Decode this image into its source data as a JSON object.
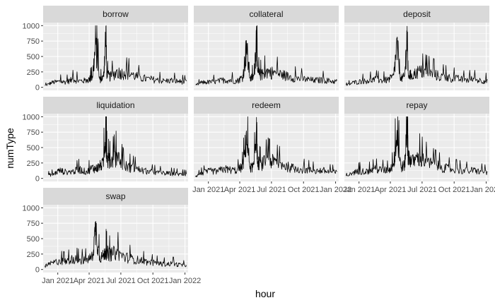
{
  "colors": {
    "panel_bg": "#EBEBEB",
    "strip_bg": "#D9D9D9",
    "grid_major": "#FFFFFF",
    "line": "#000000"
  },
  "chart_data": {
    "type": "line",
    "facet_layout": "3 columns, 3 rows (7 panels)",
    "xlabel": "hour",
    "ylabel": "numType",
    "ylim": [
      0,
      1000
    ],
    "yticks": [
      0,
      250,
      500,
      750,
      1000
    ],
    "xlim": [
      "2020-11-20",
      "2022-01-10"
    ],
    "xticks": [
      {
        "date": "2021-01-01",
        "label": "Jan 2021"
      },
      {
        "date": "2021-04-01",
        "label": "Apr 2021"
      },
      {
        "date": "2021-07-01",
        "label": "Jul 2021"
      },
      {
        "date": "2021-10-01",
        "label": "Oct 2021"
      },
      {
        "date": "2022-01-01",
        "label": "Jan 2022"
      }
    ],
    "grid": true,
    "panels": [
      {
        "name": "borrow",
        "series": {
          "x": [
            "2020-11-25",
            "2020-12-15",
            "2021-01-05",
            "2021-01-25",
            "2021-02-15",
            "2021-03-05",
            "2021-03-25",
            "2021-04-10",
            "2021-04-20",
            "2021-05-01",
            "2021-05-12",
            "2021-05-19",
            "2021-05-22",
            "2021-06-01",
            "2021-06-20",
            "2021-07-10",
            "2021-08-01",
            "2021-08-25",
            "2021-09-15",
            "2021-10-10",
            "2021-11-01",
            "2021-11-25",
            "2021-12-15",
            "2022-01-05"
          ],
          "y": [
            30,
            90,
            110,
            100,
            150,
            120,
            130,
            180,
            780,
            140,
            180,
            990,
            230,
            200,
            290,
            260,
            240,
            180,
            160,
            140,
            120,
            130,
            110,
            100
          ]
        }
      },
      {
        "name": "collateral",
        "series": {
          "x": [
            "2020-11-25",
            "2020-12-15",
            "2021-01-05",
            "2021-01-25",
            "2021-02-15",
            "2021-03-05",
            "2021-03-25",
            "2021-04-10",
            "2021-04-20",
            "2021-05-01",
            "2021-05-12",
            "2021-05-19",
            "2021-05-22",
            "2021-06-01",
            "2021-06-20",
            "2021-07-10",
            "2021-08-01",
            "2021-08-25",
            "2021-09-15",
            "2021-10-10",
            "2021-11-01",
            "2021-11-25",
            "2021-12-15",
            "2022-01-05"
          ],
          "y": [
            40,
            95,
            100,
            110,
            140,
            130,
            120,
            200,
            760,
            160,
            210,
            990,
            270,
            230,
            300,
            270,
            240,
            190,
            170,
            150,
            130,
            140,
            120,
            110
          ]
        }
      },
      {
        "name": "deposit",
        "series": {
          "x": [
            "2020-11-25",
            "2020-12-15",
            "2021-01-05",
            "2021-01-25",
            "2021-02-15",
            "2021-03-05",
            "2021-03-25",
            "2021-04-10",
            "2021-04-20",
            "2021-05-01",
            "2021-05-12",
            "2021-05-19",
            "2021-05-22",
            "2021-06-01",
            "2021-06-20",
            "2021-07-10",
            "2021-08-01",
            "2021-08-25",
            "2021-09-15",
            "2021-10-10",
            "2021-11-01",
            "2021-11-25",
            "2021-12-15",
            "2022-01-05"
          ],
          "y": [
            35,
            90,
            110,
            120,
            150,
            130,
            140,
            200,
            780,
            160,
            200,
            990,
            250,
            220,
            300,
            280,
            250,
            200,
            180,
            160,
            140,
            150,
            130,
            120
          ]
        }
      },
      {
        "name": "liquidation",
        "series": {
          "x": [
            "2020-12-05",
            "2020-12-20",
            "2021-01-05",
            "2021-01-25",
            "2021-02-15",
            "2021-03-05",
            "2021-03-25",
            "2021-04-10",
            "2021-04-20",
            "2021-05-01",
            "2021-05-12",
            "2021-05-19",
            "2021-05-22",
            "2021-06-01",
            "2021-06-20",
            "2021-07-10",
            "2021-08-01",
            "2021-08-25",
            "2021-09-15",
            "2021-10-10",
            "2021-11-01",
            "2021-11-25",
            "2021-12-15",
            "2022-01-05"
          ],
          "y": [
            60,
            80,
            150,
            120,
            130,
            170,
            120,
            200,
            180,
            230,
            280,
            980,
            360,
            310,
            420,
            240,
            200,
            160,
            130,
            110,
            100,
            90,
            80,
            70
          ]
        }
      },
      {
        "name": "redeem",
        "series": {
          "x": [
            "2020-11-25",
            "2020-12-15",
            "2021-01-05",
            "2021-01-25",
            "2021-02-15",
            "2021-03-05",
            "2021-03-25",
            "2021-04-10",
            "2021-04-20",
            "2021-05-01",
            "2021-05-12",
            "2021-05-19",
            "2021-05-22",
            "2021-06-01",
            "2021-06-20",
            "2021-07-10",
            "2021-08-01",
            "2021-08-25",
            "2021-09-15",
            "2021-10-10",
            "2021-11-01",
            "2021-11-25",
            "2021-12-15",
            "2022-01-05"
          ],
          "y": [
            40,
            100,
            140,
            130,
            180,
            160,
            150,
            230,
            770,
            200,
            230,
            990,
            300,
            260,
            350,
            300,
            260,
            200,
            180,
            160,
            140,
            150,
            120,
            110
          ]
        }
      },
      {
        "name": "repay",
        "series": {
          "x": [
            "2020-11-25",
            "2020-12-15",
            "2021-01-05",
            "2021-01-25",
            "2021-02-15",
            "2021-03-05",
            "2021-03-25",
            "2021-04-10",
            "2021-04-20",
            "2021-05-01",
            "2021-05-12",
            "2021-05-19",
            "2021-05-22",
            "2021-06-01",
            "2021-06-20",
            "2021-07-10",
            "2021-08-01",
            "2021-08-25",
            "2021-09-15",
            "2021-10-10",
            "2021-11-01",
            "2021-11-25",
            "2021-12-15",
            "2022-01-05"
          ],
          "y": [
            40,
            110,
            140,
            130,
            170,
            160,
            150,
            240,
            780,
            210,
            250,
            990,
            460,
            300,
            400,
            320,
            260,
            210,
            180,
            160,
            140,
            150,
            130,
            110
          ]
        }
      },
      {
        "name": "swap",
        "series": {
          "x": [
            "2020-11-25",
            "2020-12-15",
            "2021-01-05",
            "2021-01-25",
            "2021-02-15",
            "2021-03-05",
            "2021-03-25",
            "2021-04-10",
            "2021-04-20",
            "2021-05-01",
            "2021-05-12",
            "2021-05-19",
            "2021-05-22",
            "2021-06-01",
            "2021-06-20",
            "2021-07-10",
            "2021-08-01",
            "2021-08-25",
            "2021-09-15",
            "2021-10-10",
            "2021-11-01",
            "2021-11-25",
            "2021-12-15",
            "2022-01-05"
          ],
          "y": [
            60,
            120,
            160,
            150,
            200,
            170,
            180,
            240,
            780,
            220,
            260,
            350,
            320,
            280,
            330,
            240,
            200,
            170,
            140,
            120,
            100,
            110,
            90,
            70
          ]
        }
      }
    ]
  }
}
